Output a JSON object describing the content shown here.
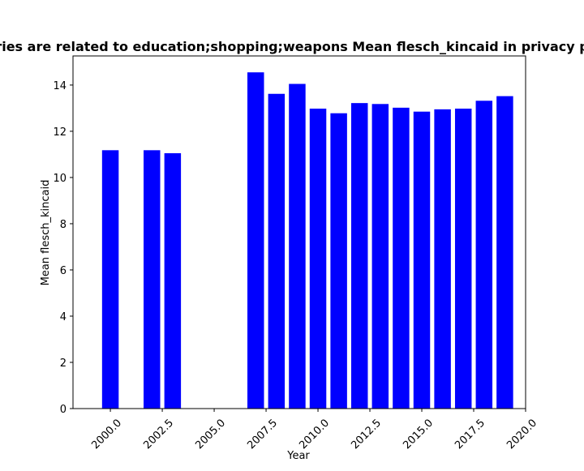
{
  "chart_data": {
    "type": "bar",
    "title": "ries are related to education;shopping;weapons Mean flesch_kincaid in privacy p",
    "xlabel": "Year",
    "ylabel": "Mean flesch_kincaid",
    "x": [
      2000,
      2002,
      2003,
      2007,
      2008,
      2009,
      2010,
      2011,
      2012,
      2013,
      2014,
      2015,
      2016,
      2017,
      2018,
      2019
    ],
    "values": [
      11.18,
      11.18,
      11.05,
      14.55,
      13.62,
      14.05,
      12.98,
      12.78,
      13.22,
      13.18,
      13.02,
      12.85,
      12.95,
      12.98,
      13.32,
      13.52
    ],
    "bar_width": 0.8,
    "xlim": [
      1998.2,
      2020.0
    ],
    "ylim": [
      0,
      15.26
    ],
    "xticks": [
      2000.0,
      2002.5,
      2005.0,
      2007.5,
      2010.0,
      2012.5,
      2015.0,
      2017.5,
      2020.0
    ],
    "xtick_labels": [
      "2000.0",
      "2002.5",
      "2005.0",
      "2007.5",
      "2010.0",
      "2012.5",
      "2015.0",
      "2017.5",
      "2020.0"
    ],
    "yticks": [
      0,
      2,
      4,
      6,
      8,
      10,
      12,
      14
    ],
    "ytick_labels": [
      "0",
      "2",
      "4",
      "6",
      "8",
      "10",
      "12",
      "14"
    ],
    "bar_color": "#0000ff",
    "grid": false,
    "legend": "none"
  }
}
